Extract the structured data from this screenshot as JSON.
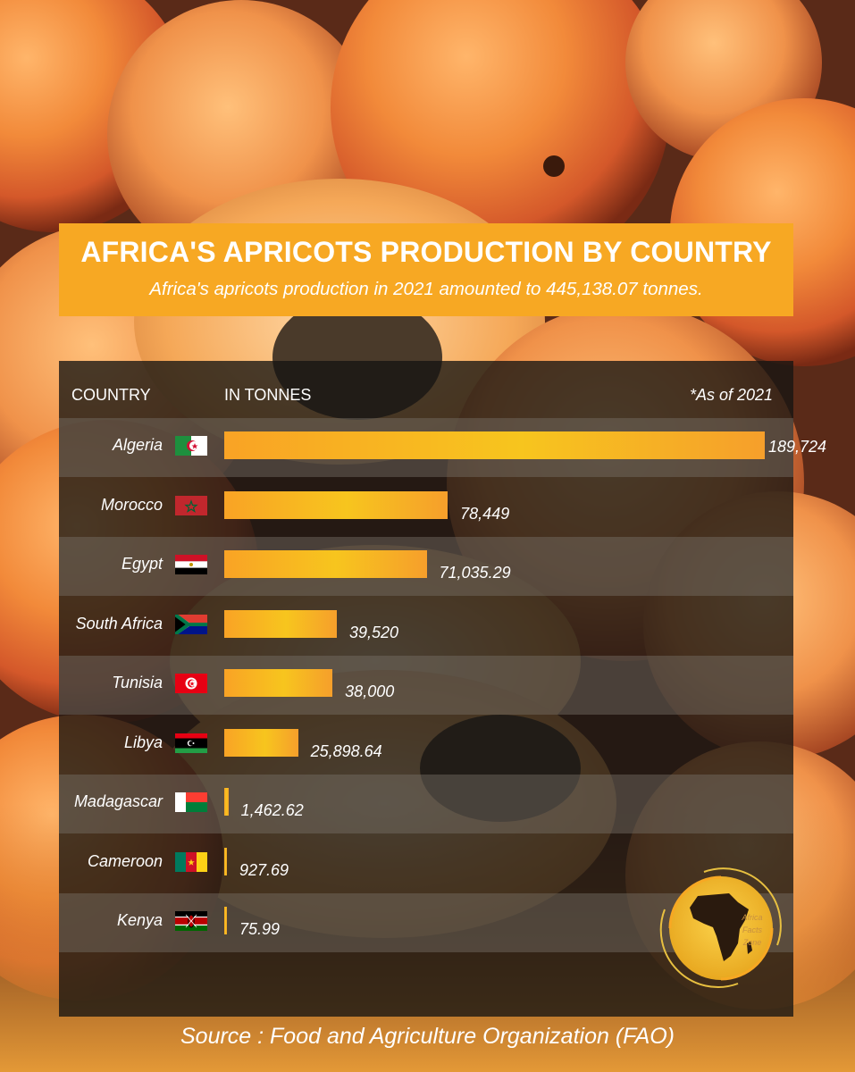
{
  "header": {
    "title": "AFRICA'S APRICOTS PRODUCTION BY COUNTRY",
    "subtitle": "Africa's apricots production in 2021 amounted to 445,138.07 tonnes."
  },
  "table": {
    "col_country": "COUNTRY",
    "col_unit": "IN TONNES",
    "note": "*As of 2021"
  },
  "chart_data": {
    "type": "bar",
    "orientation": "horizontal",
    "title": "AFRICA'S APRICOTS PRODUCTION BY COUNTRY",
    "subtitle": "Africa's apricots production in 2021 amounted to 445,138.07 tonnes.",
    "categories": [
      "Algeria",
      "Morocco",
      "Egypt",
      "South Africa",
      "Tunisia",
      "Libya",
      "Madagascar",
      "Cameroon",
      "Kenya"
    ],
    "values": [
      189724,
      78449,
      71035.29,
      39520,
      38000,
      25898.64,
      1462.62,
      927.69,
      75.99
    ],
    "value_labels": [
      "189,724",
      "78,449",
      "71,035.29",
      "39,520",
      "38,000",
      "25,898.64",
      "1,462.62",
      "927.69",
      "75.99"
    ],
    "flags": [
      "algeria-flag",
      "morocco-flag",
      "egypt-flag",
      "south-africa-flag",
      "tunisia-flag",
      "libya-flag",
      "madagascar-flag",
      "cameroon-flag",
      "kenya-flag"
    ],
    "xlim": [
      0,
      189724
    ],
    "grid": false,
    "bar_color": "#f7b422"
  },
  "footer": {
    "source": "Source :  Food and Agriculture Organization (FAO)"
  },
  "logo": {
    "icon": "africa-map-logo",
    "text_lines": [
      "Africa",
      "Facts",
      "Zone"
    ]
  },
  "colors": {
    "banner": "#f7a823",
    "bar_start": "#f9a325",
    "bar_mid": "#f7c51e",
    "accent": "#f7b422"
  }
}
